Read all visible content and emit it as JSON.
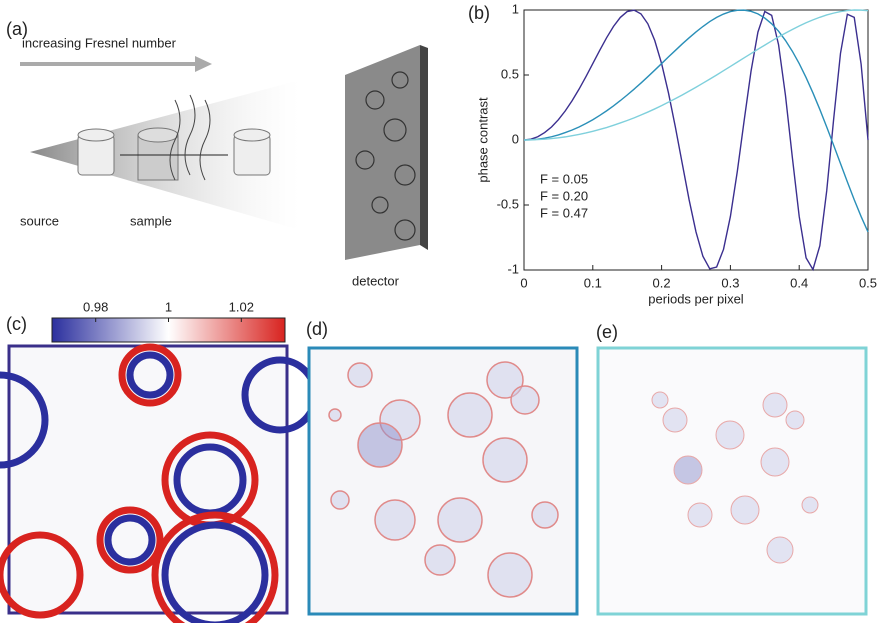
{
  "panel_labels": [
    "(a)",
    "(b)",
    "(c)",
    "(d)",
    "(e)"
  ],
  "diagram": {
    "arrow_label": "increasing Fresnel number",
    "source": "source",
    "sample": "sample",
    "detector": "detector"
  },
  "chart_data": [
    {
      "type": "line",
      "xlabel": "periods per pixel",
      "ylabel": "phase contrast",
      "x": [
        0,
        0.01,
        0.02,
        0.03,
        0.04,
        0.05,
        0.06,
        0.07,
        0.08,
        0.09,
        0.1,
        0.11,
        0.12,
        0.13,
        0.14,
        0.15,
        0.16,
        0.17,
        0.18,
        0.19,
        0.2,
        0.21,
        0.22,
        0.23,
        0.24,
        0.25,
        0.26,
        0.27,
        0.28,
        0.29,
        0.3,
        0.31,
        0.32,
        0.33,
        0.34,
        0.35,
        0.36,
        0.37,
        0.38,
        0.39,
        0.4,
        0.41,
        0.42,
        0.43,
        0.44,
        0.45,
        0.46,
        0.47,
        0.48,
        0.49,
        0.5
      ],
      "series": [
        {
          "name": "F = 0.05",
          "color": "#3b2f8f",
          "values": [
            0,
            0.006,
            0.025,
            0.057,
            0.1,
            0.156,
            0.224,
            0.303,
            0.391,
            0.487,
            0.588,
            0.689,
            0.786,
            0.873,
            0.943,
            0.988,
            0.999,
            0.97,
            0.894,
            0.766,
            0.588,
            0.362,
            0.1,
            -0.181,
            -0.46,
            -0.707,
            -0.894,
            -0.991,
            -0.977,
            -0.841,
            -0.588,
            -0.243,
            0.15,
            0.53,
            0.83,
            0.988,
            0.959,
            0.733,
            0.345,
            -0.132,
            -0.588,
            -0.907,
            -0.996,
            -0.813,
            -0.391,
            0.156,
            0.666,
            0.967,
            0.943,
            0.583,
            0
          ]
        },
        {
          "name": "F = 0.20",
          "color": "#2a8fb8",
          "values": [
            0,
            0.002,
            0.006,
            0.014,
            0.025,
            0.039,
            0.057,
            0.077,
            0.1,
            0.127,
            0.156,
            0.189,
            0.224,
            0.262,
            0.303,
            0.346,
            0.391,
            0.438,
            0.487,
            0.537,
            0.588,
            0.639,
            0.689,
            0.739,
            0.786,
            0.831,
            0.873,
            0.911,
            0.943,
            0.969,
            0.988,
            0.998,
            0.999,
            0.99,
            0.97,
            0.938,
            0.894,
            0.837,
            0.766,
            0.683,
            0.588,
            0.48,
            0.362,
            0.235,
            0.1,
            -0.039,
            -0.181,
            -0.322,
            -0.46,
            -0.589,
            -0.707
          ]
        },
        {
          "name": "F = 0.47",
          "color": "#7fd0dc",
          "values": [
            0,
            0.001,
            0.003,
            0.006,
            0.011,
            0.017,
            0.024,
            0.033,
            0.043,
            0.054,
            0.067,
            0.081,
            0.096,
            0.113,
            0.131,
            0.15,
            0.17,
            0.192,
            0.215,
            0.239,
            0.264,
            0.291,
            0.318,
            0.346,
            0.376,
            0.406,
            0.437,
            0.468,
            0.5,
            0.533,
            0.566,
            0.599,
            0.632,
            0.665,
            0.698,
            0.73,
            0.762,
            0.793,
            0.822,
            0.85,
            0.877,
            0.902,
            0.924,
            0.944,
            0.962,
            0.976,
            0.988,
            0.996,
            1,
            0.999,
            0.995
          ]
        }
      ],
      "xlim": [
        0,
        0.5
      ],
      "xticks": [
        0,
        0.1,
        0.2,
        0.3,
        0.4,
        0.5
      ],
      "ylim": [
        -1,
        1
      ],
      "yticks": [
        -1,
        -0.5,
        0,
        0.5,
        1
      ]
    },
    {
      "type": "colorbar",
      "colors": [
        "#2b2f9e",
        "#ffffff",
        "#d8231f"
      ],
      "xlim": [
        0.968,
        1.032
      ],
      "xticks": [
        0.98,
        1,
        1.02
      ]
    }
  ]
}
